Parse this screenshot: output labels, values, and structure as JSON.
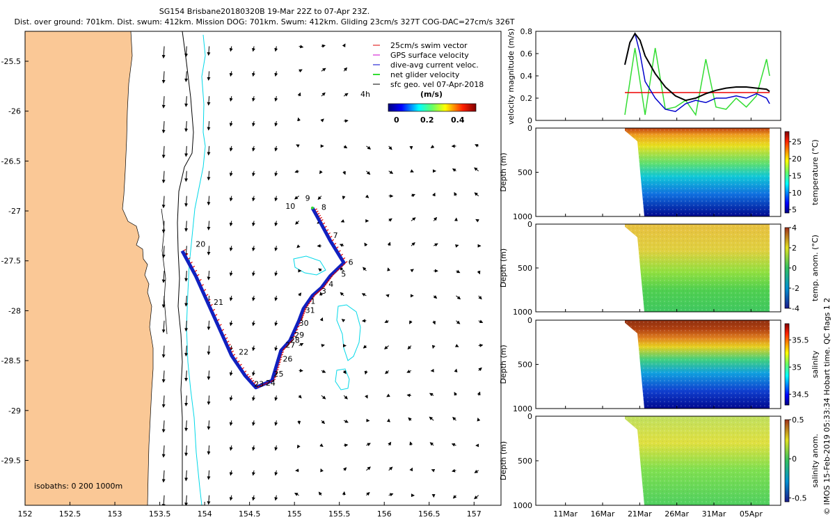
{
  "header": {
    "line1": "SG154 Brisbane20180320B 19-Mar 22Z to 07-Apr 23Z.",
    "line2": "Dist. over ground: 701km. Dist. swum: 412km. Mission DOG: 701km. Swum: 412km. Gliding 23cm/s 327T COG-DAC=27cm/s 326T"
  },
  "side_note": "© IMOS 15-Feb-2019 05:33:34 Hobart time. QC flags 1  2",
  "colors": {
    "land": "#fac896",
    "swim_vector": "#dd0000",
    "gps_velocity": "#cc00cc",
    "dive_avg": "#0000cc",
    "net_glider": "#33dd33",
    "sfc_geo": "#000000",
    "isobath_200": "#00d8e8",
    "isobath_1000": "#000000",
    "track": "#1020c0",
    "dac_line": "#000000",
    "swim_line": "#ee0000"
  },
  "chart_data": [
    {
      "id": "map",
      "type": "scatter",
      "title": "",
      "xlabel": "",
      "ylabel": "",
      "xlim": [
        152,
        157.3
      ],
      "ylim": [
        -29.95,
        -25.2
      ],
      "xticks": [
        "152",
        "152.5",
        "153",
        "153.5",
        "154",
        "154.5",
        "155",
        "155.5",
        "156",
        "156.5",
        "157"
      ],
      "xtick_values": [
        152,
        152.5,
        153,
        153.5,
        154,
        154.5,
        155,
        155.5,
        156,
        156.5,
        157
      ],
      "yticks": [
        "-25.5",
        "-26",
        "-26.5",
        "-27",
        "-27.5",
        "-28",
        "-28.5",
        "-29",
        "-29.5"
      ],
      "ytick_values": [
        -25.5,
        -26,
        -26.5,
        -27,
        -27.5,
        -28,
        -28.5,
        -29,
        -29.5
      ],
      "legend": {
        "placement": "top-right",
        "entries": [
          "25cm/s swim vector",
          "GPS surface velocity",
          "dive-avg current veloc.",
          "net glider velocity",
          "sfc geo. vel 07-Apr-2018"
        ],
        "colorbar_title": "(m/s)",
        "colorbar_ticks": [
          "0",
          "0.2",
          "0.4"
        ],
        "age_label": "4h"
      },
      "isobath_label": "isobaths: 0   200  1000m",
      "track": [
        [
          153.75,
          -27.4
        ],
        [
          153.9,
          -27.65
        ],
        [
          154.05,
          -27.95
        ],
        [
          154.2,
          -28.25
        ],
        [
          154.3,
          -28.45
        ],
        [
          154.45,
          -28.65
        ],
        [
          154.57,
          -28.77
        ],
        [
          154.75,
          -28.7
        ],
        [
          154.8,
          -28.55
        ],
        [
          154.85,
          -28.4
        ],
        [
          154.95,
          -28.3
        ],
        [
          155.05,
          -28.1
        ],
        [
          155.1,
          -27.98
        ],
        [
          155.2,
          -27.85
        ],
        [
          155.3,
          -27.77
        ],
        [
          155.4,
          -27.65
        ],
        [
          155.55,
          -27.52
        ],
        [
          155.4,
          -27.3
        ],
        [
          155.28,
          -27.1
        ],
        [
          155.2,
          -26.97
        ]
      ],
      "dive_labels": [
        {
          "t": "9",
          "lon": 155.12,
          "lat": -26.9
        },
        {
          "t": "10",
          "lon": 154.9,
          "lat": -26.98
        },
        {
          "t": "8",
          "lon": 155.3,
          "lat": -26.99
        },
        {
          "t": "7",
          "lon": 155.43,
          "lat": -27.27
        },
        {
          "t": "6",
          "lon": 155.6,
          "lat": -27.54
        },
        {
          "t": "5",
          "lon": 155.52,
          "lat": -27.66
        },
        {
          "t": "4",
          "lon": 155.38,
          "lat": -27.76
        },
        {
          "t": "3",
          "lon": 155.3,
          "lat": -27.83
        },
        {
          "t": "1",
          "lon": 155.18,
          "lat": -27.93
        },
        {
          "t": "31",
          "lon": 155.12,
          "lat": -28.02
        },
        {
          "t": "30",
          "lon": 155.05,
          "lat": -28.15
        },
        {
          "t": "29",
          "lon": 155.0,
          "lat": -28.27
        },
        {
          "t": "28",
          "lon": 154.95,
          "lat": -28.32
        },
        {
          "t": "27",
          "lon": 154.9,
          "lat": -28.37
        },
        {
          "t": "26",
          "lon": 154.87,
          "lat": -28.51
        },
        {
          "t": "25",
          "lon": 154.77,
          "lat": -28.66
        },
        {
          "t": "24",
          "lon": 154.68,
          "lat": -28.75
        },
        {
          "t": "23",
          "lon": 154.55,
          "lat": -28.76
        },
        {
          "t": "22",
          "lon": 154.38,
          "lat": -28.44
        },
        {
          "t": "21",
          "lon": 154.1,
          "lat": -27.94
        },
        {
          "t": "20",
          "lon": 153.9,
          "lat": -27.36
        }
      ]
    },
    {
      "id": "velocity",
      "type": "line",
      "title": "",
      "xlabel": "",
      "ylabel": "velocity magnitude (m/s)",
      "xlim": [
        0,
        33
      ],
      "ylim": [
        0,
        0.8
      ],
      "yticks": [
        "0",
        "0.2",
        "0.4",
        "0.6",
        "0.8"
      ],
      "ytick_values": [
        0,
        0.2,
        0.4,
        0.6,
        0.8
      ],
      "series": [
        {
          "name": "swim",
          "x": [
            0,
            14.3
          ],
          "values": [
            0.25,
            0.25
          ]
        },
        {
          "name": "dac",
          "x": [
            0,
            0.5,
            1,
            1.5,
            2,
            3,
            4,
            5,
            6,
            7,
            8,
            9,
            10,
            11,
            12,
            13,
            14,
            14.3
          ],
          "values": [
            0.5,
            0.7,
            0.78,
            0.72,
            0.58,
            0.42,
            0.3,
            0.22,
            0.18,
            0.2,
            0.24,
            0.27,
            0.29,
            0.3,
            0.3,
            0.29,
            0.28,
            0.26
          ]
        },
        {
          "name": "dive_avg",
          "x": [
            0,
            0.5,
            1,
            1.5,
            2,
            3,
            4,
            5,
            6,
            7,
            8,
            9,
            10,
            11,
            12,
            13,
            14,
            14.3
          ],
          "values": [
            0.5,
            0.7,
            0.78,
            0.6,
            0.35,
            0.2,
            0.1,
            0.08,
            0.15,
            0.18,
            0.16,
            0.2,
            0.2,
            0.22,
            0.2,
            0.24,
            0.2,
            0.15
          ]
        },
        {
          "name": "net_glider",
          "x": [
            0,
            1,
            2,
            3,
            4,
            5,
            6,
            7,
            8,
            9,
            10,
            11,
            12,
            13,
            14,
            14.3
          ],
          "values": [
            0.05,
            0.65,
            0.05,
            0.65,
            0.1,
            0.12,
            0.18,
            0.05,
            0.55,
            0.12,
            0.1,
            0.2,
            0.12,
            0.22,
            0.55,
            0.4
          ]
        }
      ]
    },
    {
      "id": "temperature",
      "type": "heatmap",
      "title": "",
      "xlabel": "",
      "ylabel": "Depth (m)",
      "ylim": [
        1000,
        0
      ],
      "yticks": [
        "0",
        "500",
        "1000"
      ],
      "ytick_values": [
        0,
        500,
        1000
      ],
      "colorbar_label": "temperature (°C)",
      "colorbar_ticks": [
        "5",
        "10",
        "15",
        "20",
        "25"
      ],
      "colorbar_values": [
        5,
        10,
        15,
        20,
        25
      ],
      "clim": [
        4,
        28
      ],
      "gradient": "temp",
      "max_depth_start": 150
    },
    {
      "id": "temp_anom",
      "type": "heatmap",
      "title": "",
      "xlabel": "",
      "ylabel": "Depth (m)",
      "ylim": [
        1000,
        0
      ],
      "yticks": [
        "0",
        "500",
        "1000"
      ],
      "ytick_values": [
        0,
        500,
        1000
      ],
      "colorbar_label": "temp. anom. (°C)",
      "colorbar_ticks": [
        "-4",
        "-2",
        "0",
        "2",
        "4"
      ],
      "colorbar_values": [
        -4,
        -2,
        0,
        2,
        4
      ],
      "clim": [
        -4,
        4
      ],
      "gradient": "anom",
      "max_depth_start": 150
    },
    {
      "id": "salinity",
      "type": "heatmap",
      "title": "",
      "xlabel": "",
      "ylabel": "Depth (m)",
      "ylim": [
        1000,
        0
      ],
      "yticks": [
        "0",
        "500",
        "1000"
      ],
      "ytick_values": [
        0,
        500,
        1000
      ],
      "colorbar_label": "salinity",
      "colorbar_ticks": [
        "34.5",
        "35",
        "35.5"
      ],
      "colorbar_values": [
        34.5,
        35,
        35.5
      ],
      "clim": [
        34.3,
        35.8
      ],
      "gradient": "temp",
      "max_depth_start": 150
    },
    {
      "id": "sal_anom",
      "type": "heatmap",
      "title": "",
      "xlabel": "",
      "ylabel": "Depth (m)",
      "ylim": [
        1000,
        0
      ],
      "yticks": [
        "0",
        "500",
        "1000"
      ],
      "ytick_values": [
        0,
        500,
        1000
      ],
      "colorbar_label": "salinity anom.",
      "colorbar_ticks": [
        "-0.5",
        "0",
        "0.5"
      ],
      "colorbar_values": [
        -0.5,
        0,
        0.5
      ],
      "clim": [
        -0.55,
        0.5
      ],
      "gradient": "anom",
      "max_depth_start": 150
    }
  ],
  "time_axis": {
    "ticks": [
      "11Mar",
      "16Mar",
      "21Mar",
      "26Mar",
      "31Mar",
      "05Apr"
    ],
    "tick_days": [
      -9,
      -4,
      1,
      6,
      11,
      16
    ],
    "range_days": [
      -13,
      20
    ],
    "data_start_day": -1,
    "data_end_day": 18.5
  }
}
